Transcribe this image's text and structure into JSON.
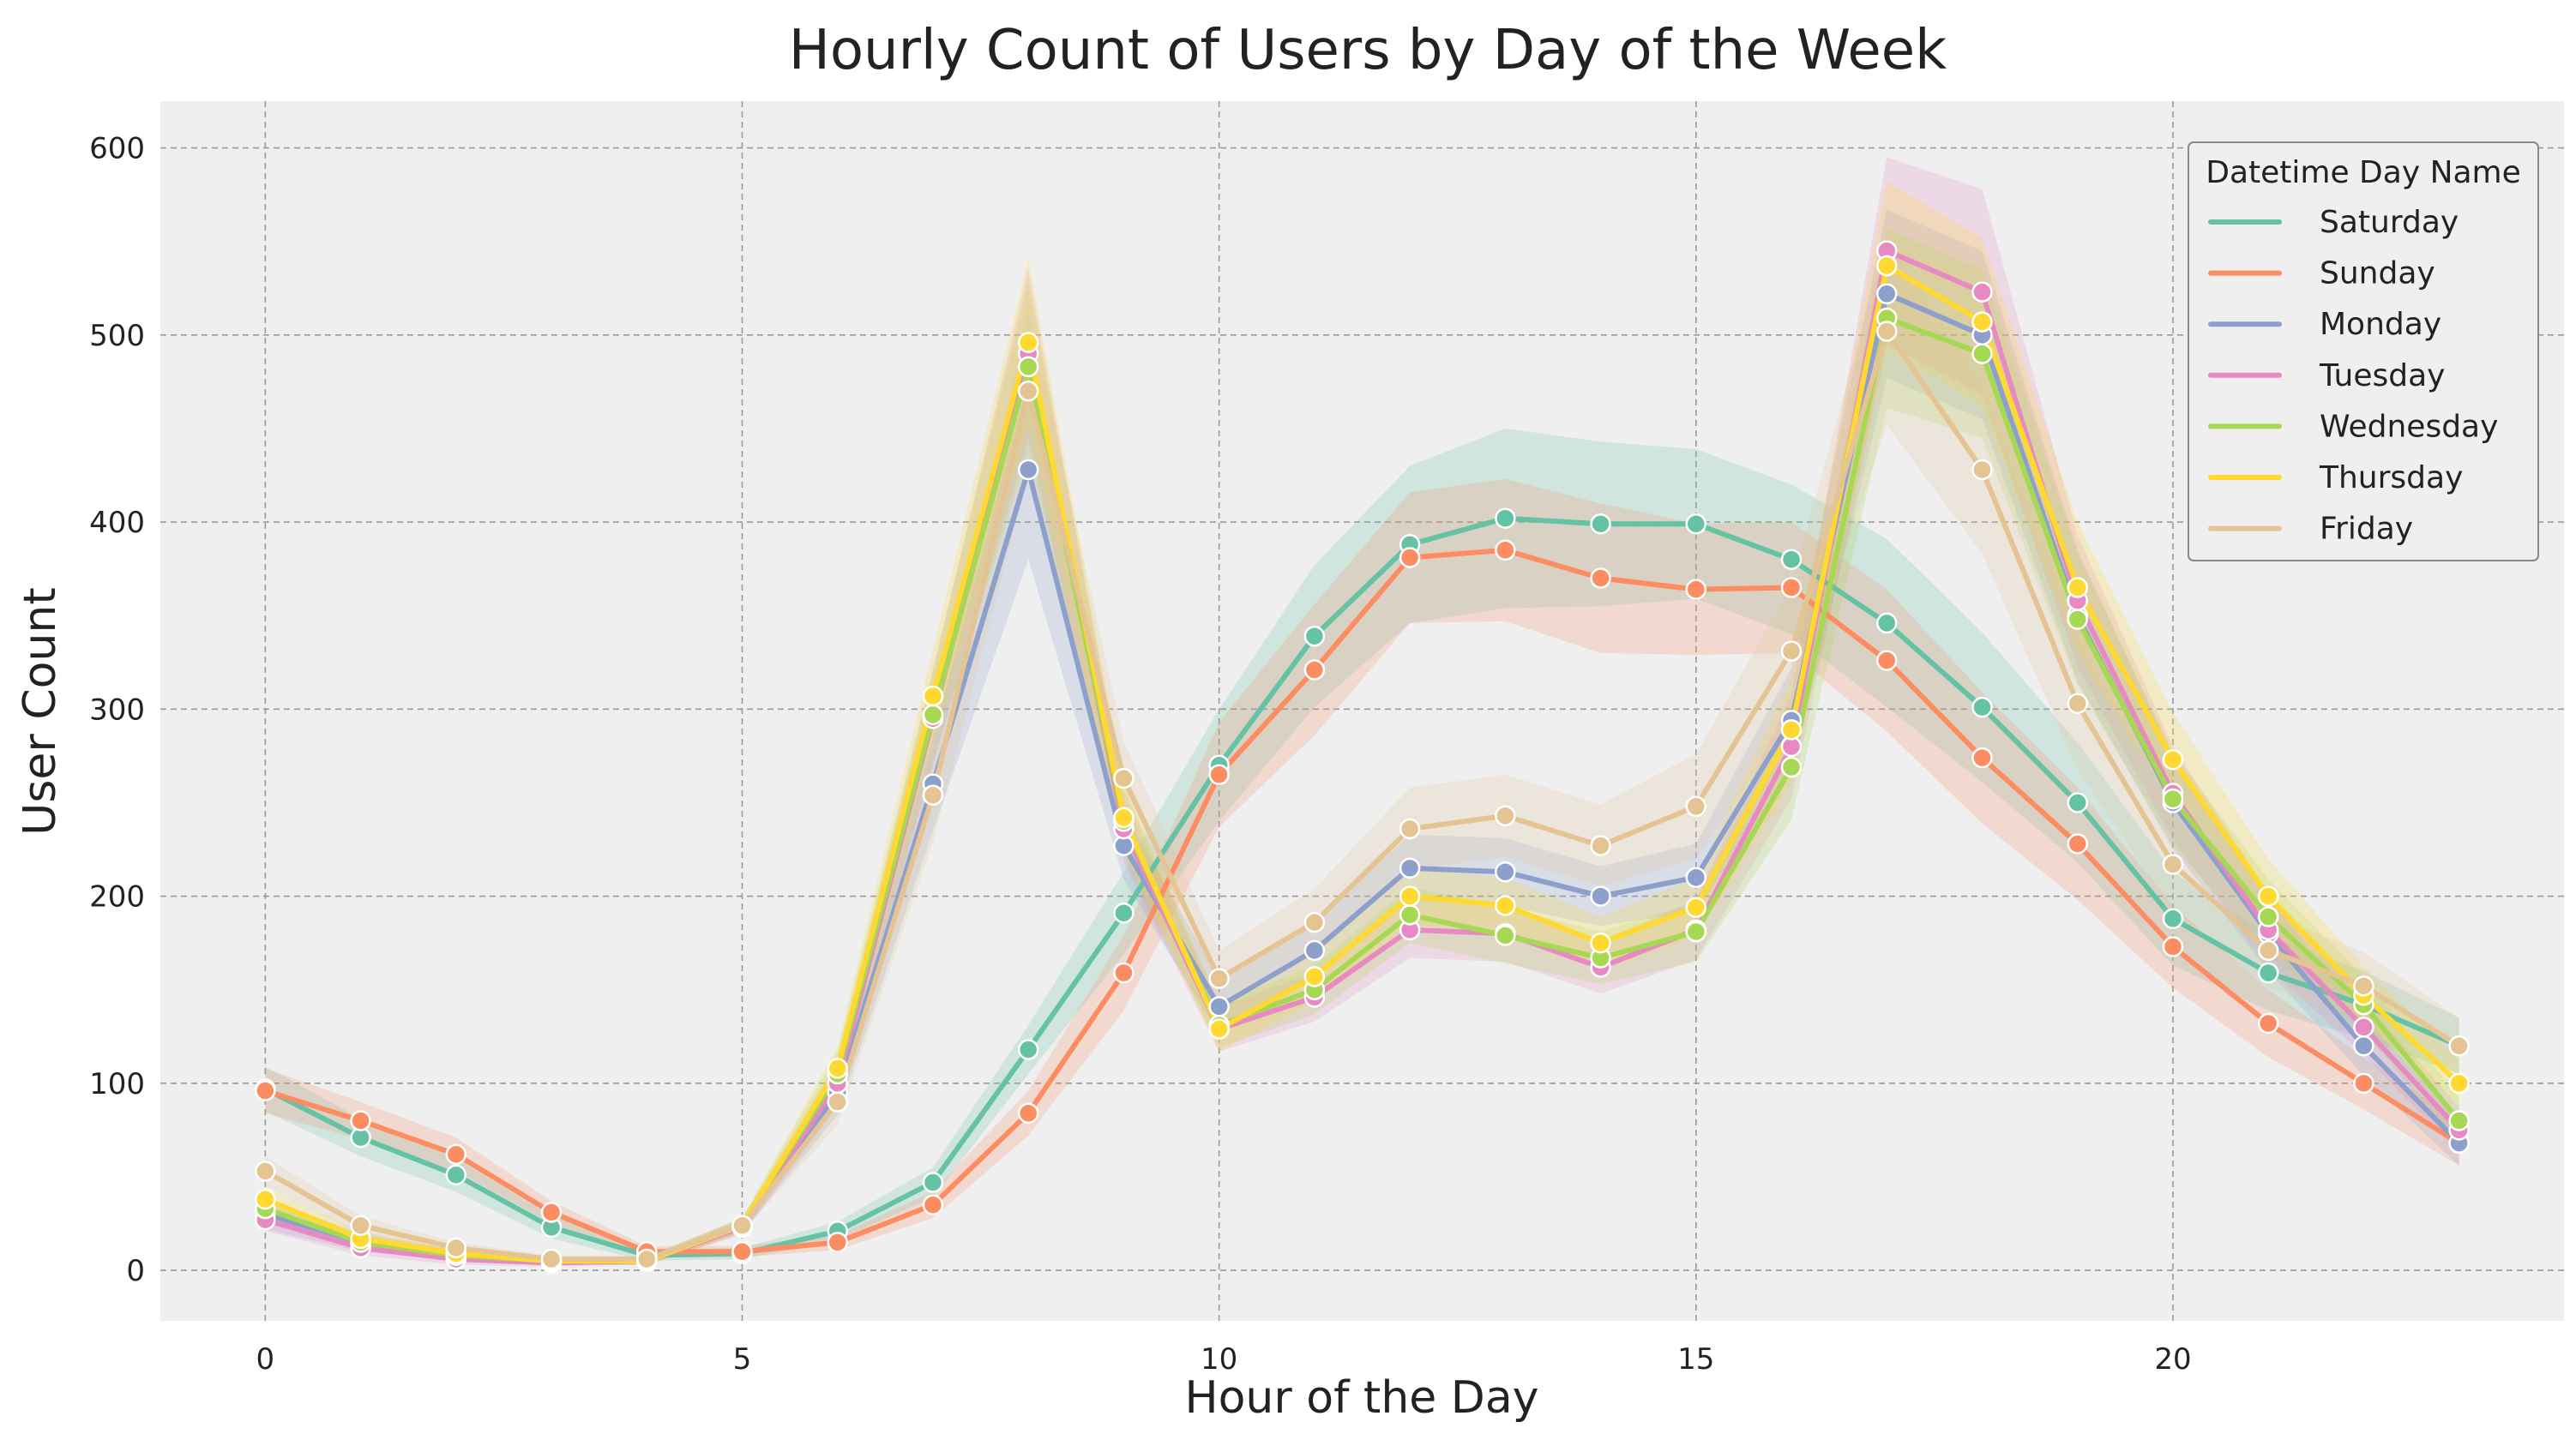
{
  "chart_data": {
    "type": "line",
    "title": "Hourly Count of Users by Day of the Week",
    "xlabel": "Hour of the Day",
    "ylabel": "User Count",
    "xlim": [
      -1.1,
      24.1
    ],
    "ylim": [
      -27,
      625
    ],
    "xticks": [
      0,
      5,
      10,
      15,
      20
    ],
    "yticks": [
      0,
      100,
      200,
      300,
      400,
      500,
      600
    ],
    "grid": true,
    "legend": {
      "title": "Datetime Day Name",
      "placement": "top-right"
    },
    "x": [
      0,
      1,
      2,
      3,
      4,
      5,
      6,
      7,
      8,
      9,
      10,
      11,
      12,
      13,
      14,
      15,
      16,
      17,
      18,
      19,
      20,
      21,
      22,
      23
    ],
    "series": [
      {
        "name": "Saturday",
        "color": "#66c2a5",
        "values": [
          97,
          71,
          51,
          23,
          8,
          9,
          21,
          47,
          118,
          191,
          270,
          339,
          388,
          402,
          399,
          399,
          380,
          346,
          301,
          250,
          188,
          159,
          142,
          120
        ],
        "band": [
          12,
          10,
          9,
          6,
          3,
          3,
          5,
          8,
          13,
          22,
          30,
          38,
          42,
          48,
          44,
          40,
          40,
          45,
          40,
          32,
          25,
          20,
          18,
          15
        ]
      },
      {
        "name": "Sunday",
        "color": "#fc8d62",
        "values": [
          96,
          80,
          62,
          31,
          10,
          10,
          15,
          35,
          84,
          159,
          265,
          321,
          381,
          385,
          370,
          364,
          365,
          326,
          274,
          228,
          173,
          132,
          100,
          68
        ],
        "band": [
          12,
          10,
          9,
          6,
          3,
          3,
          4,
          7,
          12,
          20,
          28,
          35,
          35,
          38,
          40,
          35,
          35,
          38,
          35,
          30,
          22,
          18,
          14,
          12
        ]
      },
      {
        "name": "Monday",
        "color": "#8da0cb",
        "values": [
          30,
          15,
          8,
          5,
          5,
          24,
          95,
          260,
          428,
          227,
          141,
          171,
          215,
          213,
          200,
          210,
          294,
          522,
          500,
          350,
          250,
          180,
          120,
          68
        ],
        "band": [
          8,
          5,
          3,
          2,
          2,
          4,
          12,
          25,
          48,
          18,
          15,
          15,
          18,
          18,
          16,
          18,
          28,
          45,
          45,
          35,
          25,
          20,
          16,
          12
        ]
      },
      {
        "name": "Tuesday",
        "color": "#e78ac3",
        "values": [
          27,
          12,
          6,
          4,
          5,
          23,
          100,
          295,
          490,
          236,
          129,
          146,
          182,
          180,
          162,
          182,
          280,
          545,
          523,
          358,
          255,
          182,
          130,
          75
        ],
        "band": [
          6,
          4,
          3,
          2,
          2,
          4,
          12,
          25,
          45,
          18,
          12,
          13,
          15,
          15,
          14,
          16,
          28,
          50,
          55,
          35,
          25,
          20,
          15,
          12
        ]
      },
      {
        "name": "Wednesday",
        "color": "#a6d854",
        "values": [
          33,
          15,
          8,
          5,
          5,
          24,
          105,
          297,
          483,
          240,
          131,
          150,
          190,
          179,
          167,
          181,
          269,
          509,
          490,
          348,
          252,
          189,
          142,
          80
        ],
        "band": [
          6,
          4,
          3,
          2,
          2,
          4,
          12,
          25,
          45,
          18,
          12,
          13,
          15,
          15,
          14,
          16,
          28,
          48,
          45,
          35,
          25,
          20,
          15,
          12
        ]
      },
      {
        "name": "Thursday",
        "color": "#ffd92f",
        "values": [
          38,
          17,
          9,
          5,
          5,
          24,
          108,
          307,
          496,
          242,
          129,
          157,
          200,
          195,
          175,
          194,
          289,
          537,
          507,
          365,
          273,
          200,
          147,
          100
        ],
        "band": [
          6,
          4,
          3,
          2,
          2,
          4,
          12,
          25,
          45,
          18,
          12,
          13,
          15,
          15,
          14,
          16,
          28,
          45,
          45,
          35,
          25,
          20,
          15,
          12
        ]
      },
      {
        "name": "Friday",
        "color": "#e5c494",
        "values": [
          53,
          24,
          12,
          6,
          6,
          24,
          90,
          254,
          470,
          263,
          156,
          186,
          236,
          243,
          227,
          248,
          331,
          502,
          428,
          303,
          217,
          171,
          152,
          120
        ],
        "band": [
          8,
          5,
          3,
          2,
          2,
          4,
          12,
          25,
          45,
          20,
          15,
          18,
          22,
          22,
          22,
          28,
          35,
          50,
          45,
          35,
          25,
          20,
          18,
          15
        ]
      }
    ]
  }
}
